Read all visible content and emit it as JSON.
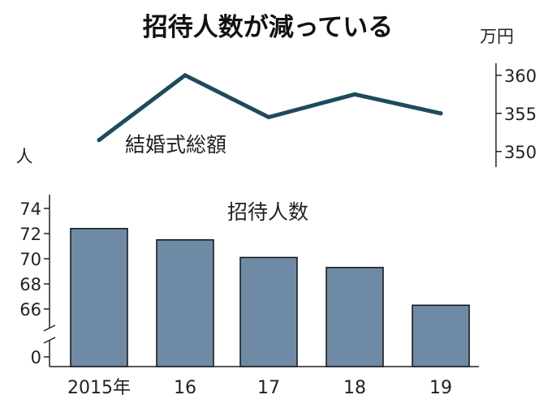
{
  "title": "招待人数が減っている",
  "colors": {
    "line": "#1f4a5c",
    "bar_fill": "#6f8aa5",
    "bar_stroke": "#111111",
    "axis": "#222222"
  },
  "chart_data": [
    {
      "type": "line",
      "label": "結婚式総額",
      "unit": "万円",
      "x": [
        "2015年",
        "16",
        "17",
        "18",
        "19"
      ],
      "values": [
        351.5,
        360.0,
        354.5,
        357.5,
        355.0
      ],
      "yticks": [
        360,
        355,
        350
      ],
      "ylim": [
        349,
        362
      ]
    },
    {
      "type": "bar",
      "label": "招待人数",
      "unit": "人",
      "categories": [
        "2015年",
        "16",
        "17",
        "18",
        "19"
      ],
      "values": [
        72.4,
        71.5,
        70.1,
        69.3,
        66.3
      ],
      "yticks": [
        74,
        72,
        70,
        68,
        66,
        0
      ],
      "axis_break": [
        0,
        66
      ],
      "ylim": [
        63.5,
        74.5
      ]
    }
  ]
}
